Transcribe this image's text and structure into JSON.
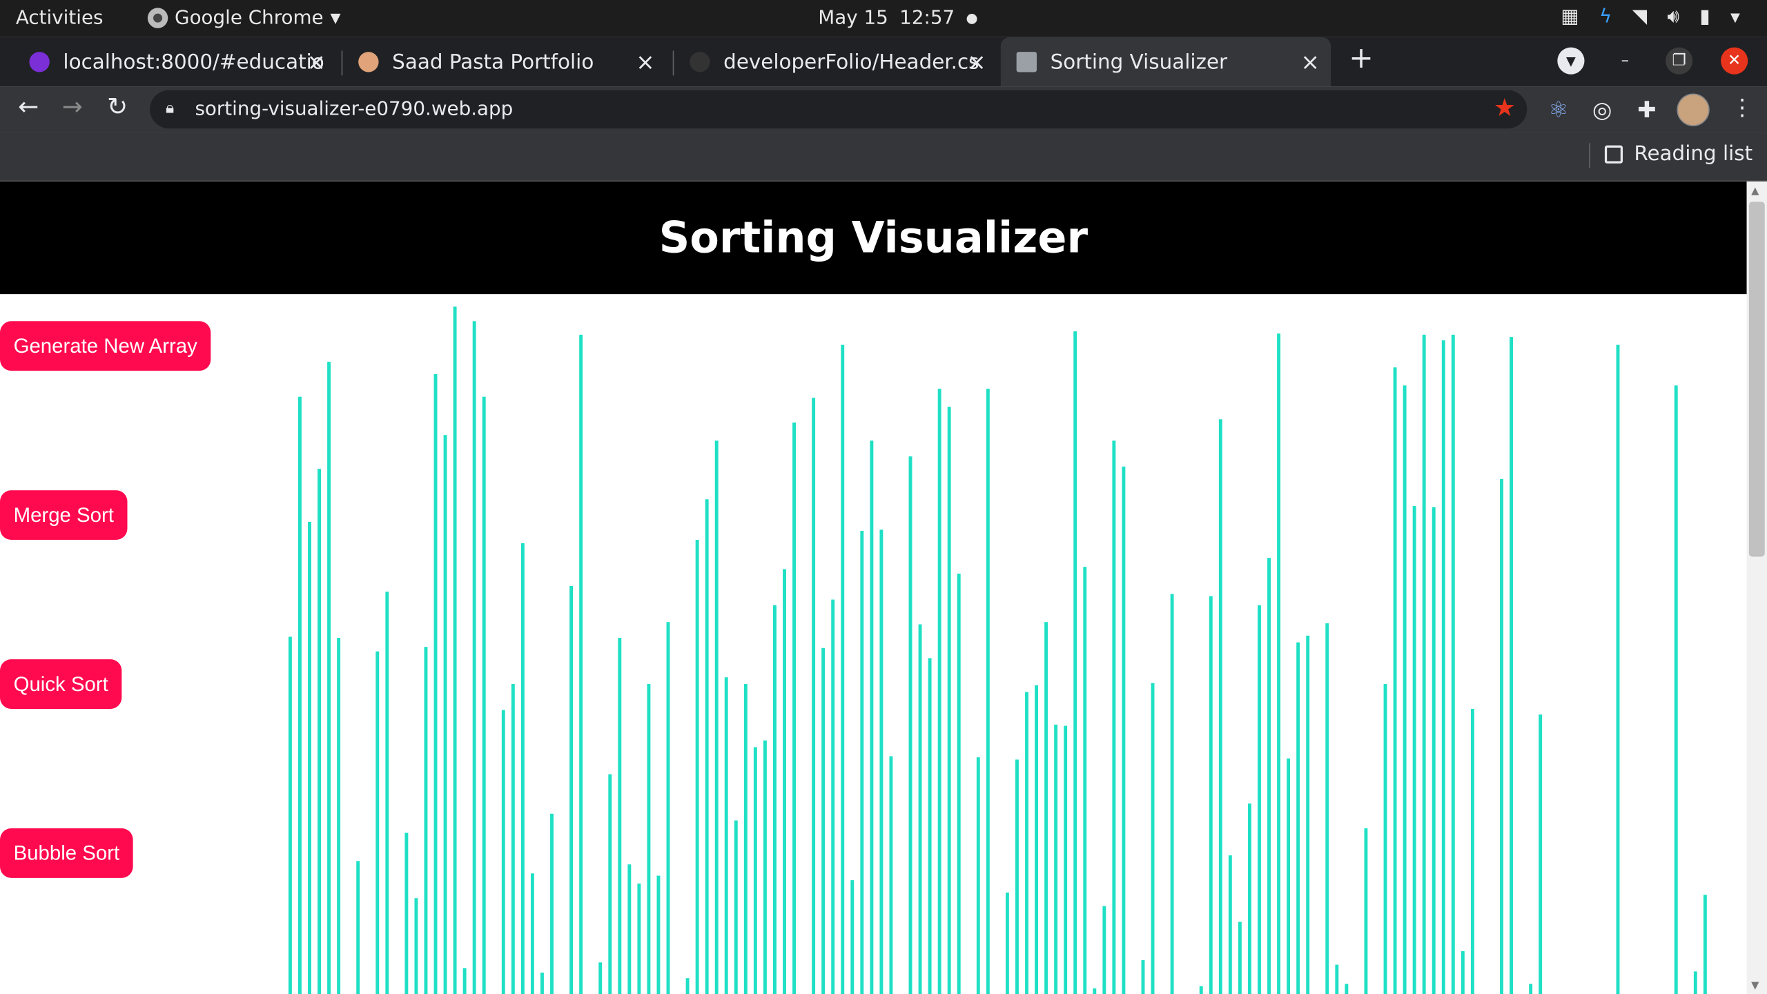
{
  "system_bar": {
    "activities": "Activities",
    "app_name": "Google Chrome",
    "date": "May 15",
    "time": "12:57"
  },
  "tabs": [
    {
      "title": "localhost:8000/#educatio",
      "favicon_color": "#7b2fd6",
      "active": false
    },
    {
      "title": "Saad Pasta Portfolio",
      "favicon_color": "#e0a37a",
      "active": false
    },
    {
      "title": "developerFolio/Header.cs",
      "favicon_color": "#333333",
      "active": false
    },
    {
      "title": "Sorting Visualizer",
      "favicon_color": "#9aa0a6",
      "active": true
    }
  ],
  "address_bar": {
    "url": "sorting-visualizer-e0790.web.app"
  },
  "bookmarks_bar": {
    "reading_list": "Reading list"
  },
  "page": {
    "title": "Sorting Visualizer",
    "buttons": [
      "Generate New Array",
      "Merge Sort",
      "Quick Sort",
      "Bubble Sort"
    ],
    "bar_color": "#1fe0c5",
    "button_color": "#ff0a4f",
    "array_values": [
      317,
      530,
      419,
      466,
      561,
      316,
      0,
      118,
      0,
      304,
      357,
      0,
      143,
      85,
      308,
      550,
      496,
      610,
      23,
      597,
      530,
      0,
      252,
      275,
      400,
      107,
      19,
      160,
      0,
      362,
      585,
      0,
      28,
      195,
      316,
      115,
      98,
      275,
      105,
      330,
      0,
      14,
      403,
      439,
      491,
      281,
      154,
      275,
      219,
      225,
      345,
      377,
      507,
      0,
      529,
      307,
      350,
      576,
      101,
      411,
      491,
      412,
      211,
      0,
      477,
      328,
      298,
      537,
      521,
      373,
      0,
      210,
      537,
      0,
      90,
      208,
      268,
      274,
      330,
      239,
      238,
      588,
      379,
      5,
      78,
      491,
      468,
      0,
      30,
      276,
      0,
      355,
      0,
      0,
      7,
      353,
      510,
      123,
      64,
      169,
      345,
      387,
      586,
      209,
      312,
      318,
      0,
      329,
      26,
      9,
      0,
      147,
      0,
      275,
      556,
      540,
      433,
      585,
      432,
      580,
      585,
      38,
      253,
      0,
      0,
      457,
      583,
      0,
      9,
      248,
      0,
      0,
      0,
      0,
      0,
      0,
      0,
      576,
      0,
      0,
      0,
      0,
      0,
      540,
      0,
      20,
      88
    ]
  }
}
